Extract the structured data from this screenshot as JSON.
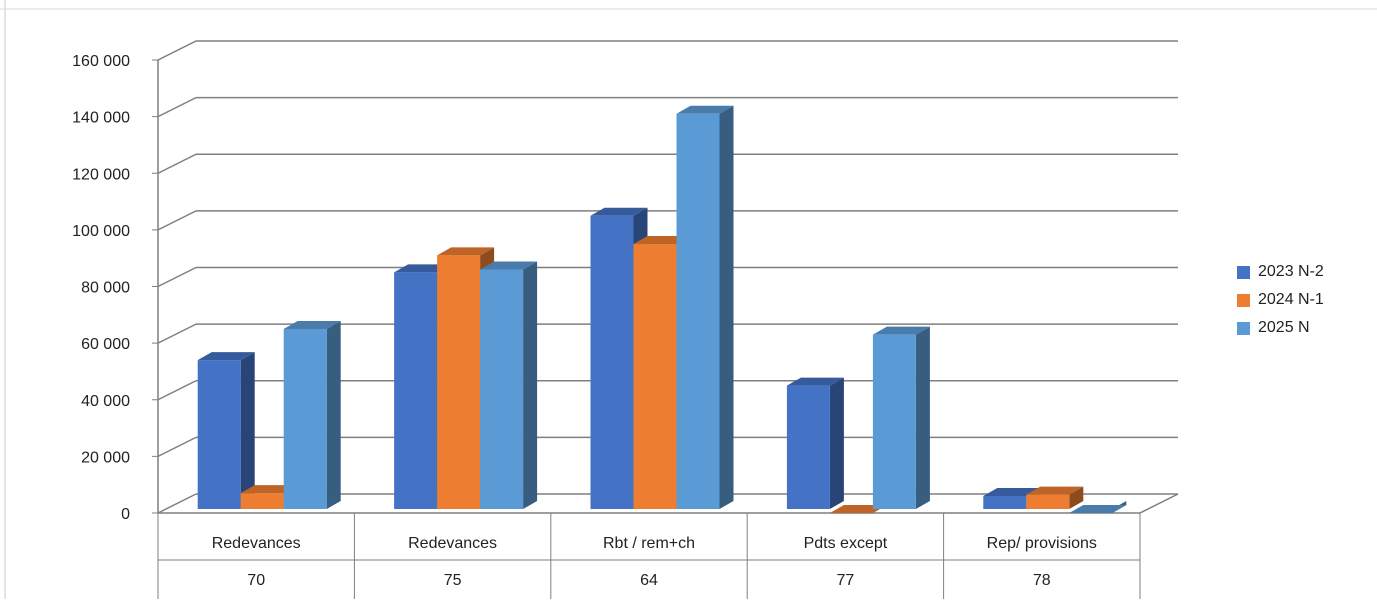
{
  "chart_data": {
    "type": "bar",
    "style": "3d-clustered-column",
    "categories": [
      {
        "label": "Redevances",
        "code": "70"
      },
      {
        "label": "Redevances",
        "code": "75"
      },
      {
        "label": "Rbt / rem+ch",
        "code": "64"
      },
      {
        "label": "Pdts except",
        "code": "77"
      },
      {
        "label": "Rep/ provisions",
        "code": "78"
      }
    ],
    "series": [
      {
        "name": "2023 N-2",
        "color": "#4472C4",
        "values": [
          54000,
          85000,
          105000,
          45000,
          6000
        ]
      },
      {
        "name": "2024 N-1",
        "color": "#ED7D31",
        "values": [
          7000,
          91000,
          95000,
          0,
          6500
        ]
      },
      {
        "name": "2025 N",
        "color": "#5B9BD5",
        "values": [
          65000,
          86000,
          141000,
          63000,
          0
        ]
      }
    ],
    "ylim": [
      0,
      160000
    ],
    "yticks": [
      "0",
      "20 000",
      "40 000",
      "60 000",
      "80 000",
      "100 000",
      "120 000",
      "140 000",
      "160 000"
    ],
    "grid": true,
    "legend_position": "right",
    "title": "",
    "xlabel": "",
    "ylabel": ""
  }
}
